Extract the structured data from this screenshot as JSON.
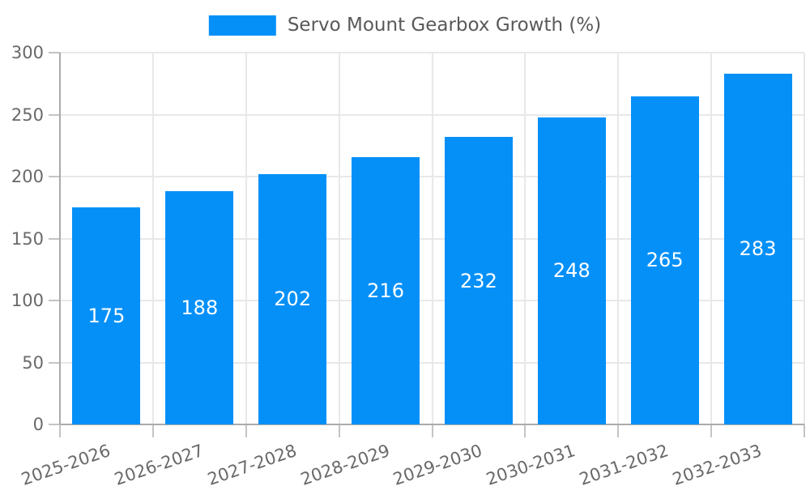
{
  "legend": {
    "label": "Servo Mount Gearbox Growth (%)"
  },
  "chart_data": {
    "type": "bar",
    "title": "Servo Mount Gearbox Growth (%)",
    "categories": [
      "2025-2026",
      "2026-2027",
      "2027-2028",
      "2028-2029",
      "2029-2030",
      "2030-2031",
      "2031-2032",
      "2032-2033"
    ],
    "values": [
      175,
      188,
      202,
      216,
      232,
      248,
      265,
      283
    ],
    "xlabel": "",
    "ylabel": "",
    "ylim": [
      0,
      300
    ],
    "y_ticks": [
      0,
      50,
      100,
      150,
      200,
      250,
      300
    ],
    "grid": true,
    "legend_position": "top-center",
    "x_tick_rotation_deg": -19,
    "bar_label_position": "inside-center"
  },
  "colors": {
    "bar": "#0590f8",
    "bar_label": "#ffffff",
    "grid": "#e8e8e8",
    "axis": "#ababab",
    "tick": "#c4c4c4",
    "tick_label": "#696969",
    "legend_text": "#595959",
    "background": "#ffffff"
  }
}
